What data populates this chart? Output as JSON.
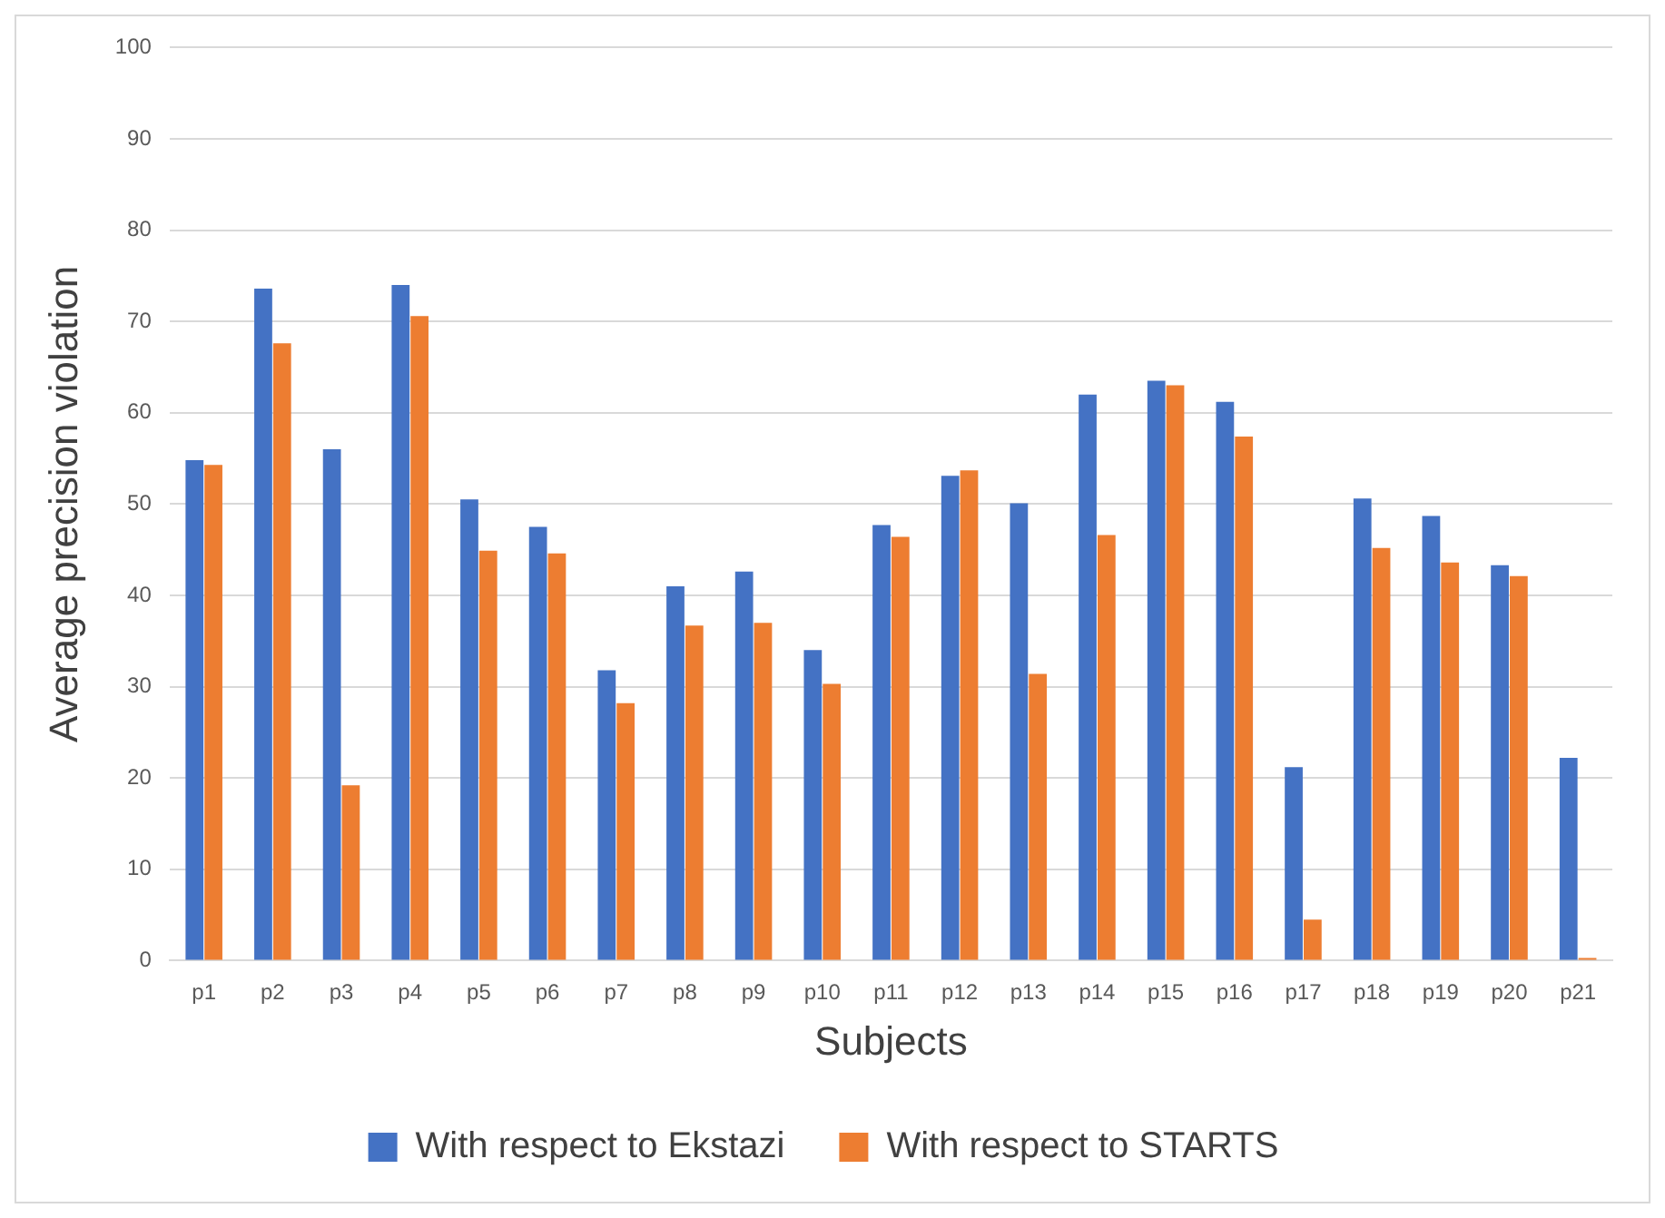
{
  "chart_data": {
    "type": "bar",
    "xlabel": "Subjects",
    "ylabel": "Average precision violation",
    "categories": [
      "p1",
      "p2",
      "p3",
      "p4",
      "p5",
      "p6",
      "p7",
      "p8",
      "p9",
      "p10",
      "p11",
      "p12",
      "p13",
      "p14",
      "p15",
      "p16",
      "p17",
      "p18",
      "p19",
      "p20",
      "p21"
    ],
    "series": [
      {
        "name": "With respect to Ekstazi",
        "color": "#4472c4",
        "values": [
          54.8,
          73.6,
          56,
          74,
          50.5,
          47.5,
          31.8,
          41,
          42.6,
          34,
          47.7,
          53.1,
          50.1,
          62,
          63.5,
          61.2,
          21.2,
          50.6,
          48.7,
          43.3,
          22.2
        ]
      },
      {
        "name": "With respect to STARTS",
        "color": "#ed7d31",
        "values": [
          54.3,
          67.6,
          19.2,
          70.6,
          44.9,
          44.6,
          28.2,
          36.7,
          37,
          30.3,
          46.4,
          53.7,
          31.4,
          46.6,
          63,
          57.4,
          4.5,
          45.2,
          43.6,
          42.1,
          0.3
        ]
      }
    ],
    "ylim": [
      0,
      100
    ],
    "yticks": [
      0,
      10,
      20,
      30,
      40,
      50,
      60,
      70,
      80,
      90,
      100
    ],
    "grid": "y",
    "legend": "bottom"
  }
}
